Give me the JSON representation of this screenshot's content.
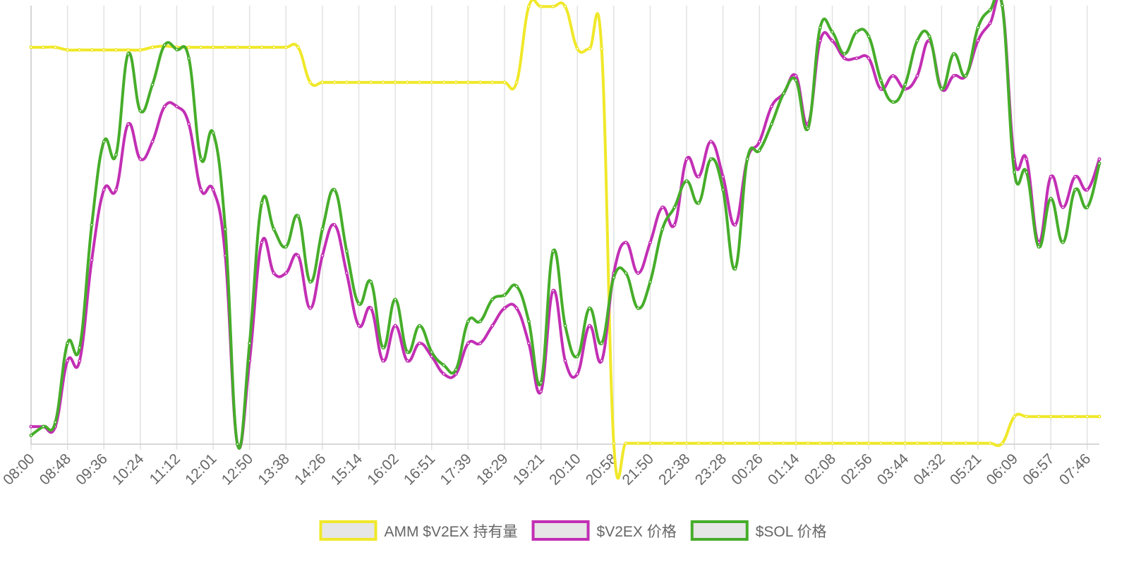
{
  "chart_data": {
    "type": "line",
    "categories": [
      "08:00",
      null,
      null,
      "08:48",
      null,
      null,
      "09:36",
      null,
      null,
      "10:24",
      null,
      null,
      "11:12",
      null,
      null,
      "12:01",
      null,
      null,
      "12:50",
      null,
      null,
      "13:38",
      null,
      null,
      "14:26",
      null,
      null,
      "15:14",
      null,
      null,
      "16:02",
      null,
      null,
      "16:51",
      null,
      null,
      "17:39",
      null,
      null,
      "18:29",
      null,
      null,
      "19:21",
      null,
      null,
      "20:10",
      null,
      null,
      "20:58",
      null,
      null,
      "21:50",
      null,
      null,
      "22:38",
      null,
      null,
      "23:28",
      null,
      null,
      "00:26",
      null,
      null,
      "01:14",
      null,
      null,
      "02:08",
      null,
      null,
      "02:56",
      null,
      null,
      "03:44",
      null,
      null,
      "04:32",
      null,
      null,
      "05:21",
      null,
      null,
      "06:09",
      null,
      null,
      "06:57",
      null,
      null,
      "07:46",
      null
    ],
    "series": [
      {
        "name": "AMM $V2EX 持有量",
        "color": "#f0e829",
        "values": [
          90.5,
          90.5,
          90.5,
          89.9,
          89.9,
          89.9,
          89.9,
          89.9,
          89.9,
          89.9,
          90.5,
          90.8,
          90.5,
          90.5,
          90.5,
          90.5,
          90.5,
          90.5,
          90.5,
          90.5,
          90.5,
          90.5,
          90.5,
          82.5,
          82.5,
          82.5,
          82.5,
          82.5,
          82.5,
          82.5,
          82.5,
          82.5,
          82.5,
          82.5,
          82.5,
          82.5,
          82.5,
          82.5,
          82.5,
          82.5,
          82.5,
          99.8,
          99.8,
          99.8,
          99.8,
          90.2,
          90.2,
          90.2,
          0.2,
          0.2,
          0.2,
          0.2,
          0.2,
          0.2,
          0.2,
          0.2,
          0.2,
          0.2,
          0.2,
          0.2,
          0.2,
          0.2,
          0.2,
          0.2,
          0.2,
          0.2,
          0.2,
          0.2,
          0.2,
          0.2,
          0.2,
          0.2,
          0.2,
          0.2,
          0.2,
          0.2,
          0.2,
          0.2,
          0.2,
          0.2,
          0.2,
          6.3,
          6.3,
          6.3,
          6.3,
          6.3,
          6.3,
          6.3,
          6.3
        ]
      },
      {
        "name": "$V2EX 价格",
        "color": "#c22fb4",
        "values": [
          4,
          4,
          4,
          19,
          19,
          42,
          58,
          58,
          73,
          65,
          69,
          77,
          77,
          73,
          58,
          58,
          43,
          0,
          19,
          46,
          39,
          39,
          43,
          31,
          43,
          50,
          39,
          27,
          31,
          19,
          27,
          19,
          23,
          20,
          16,
          16,
          23,
          23,
          27,
          31,
          31,
          23,
          12,
          35,
          19,
          16,
          27,
          19,
          39,
          46,
          39,
          46,
          54,
          50,
          65,
          61,
          69,
          61,
          50,
          65,
          69,
          77,
          80,
          84,
          73,
          92,
          92,
          88,
          88,
          88,
          81,
          84,
          81,
          84,
          92,
          81,
          84,
          84,
          92,
          96,
          100,
          65,
          65,
          46,
          61,
          54,
          61,
          58,
          65
        ]
      },
      {
        "name": "$SOL 价格",
        "color": "#46ad2a",
        "values": [
          2,
          4,
          5,
          23,
          22,
          50,
          69,
          66,
          89,
          76,
          82,
          91,
          90,
          88,
          65,
          71,
          49,
          0,
          23,
          55,
          49,
          45,
          52,
          37,
          49,
          58,
          44,
          32,
          37,
          22,
          33,
          21,
          27,
          21,
          18,
          17,
          28,
          28,
          33,
          34,
          36,
          28,
          14,
          44,
          27,
          20,
          31,
          23,
          38,
          39,
          31,
          37,
          49,
          54,
          60,
          55,
          65,
          58,
          40,
          65,
          67,
          73,
          80,
          83,
          72,
          95,
          94,
          89,
          94,
          93,
          83,
          78,
          82,
          92,
          93,
          81,
          89,
          84,
          95,
          99,
          100,
          62,
          62,
          45,
          56,
          46,
          58,
          54,
          64
        ]
      }
    ],
    "ylim": [
      0,
      100
    ],
    "grid": true
  }
}
